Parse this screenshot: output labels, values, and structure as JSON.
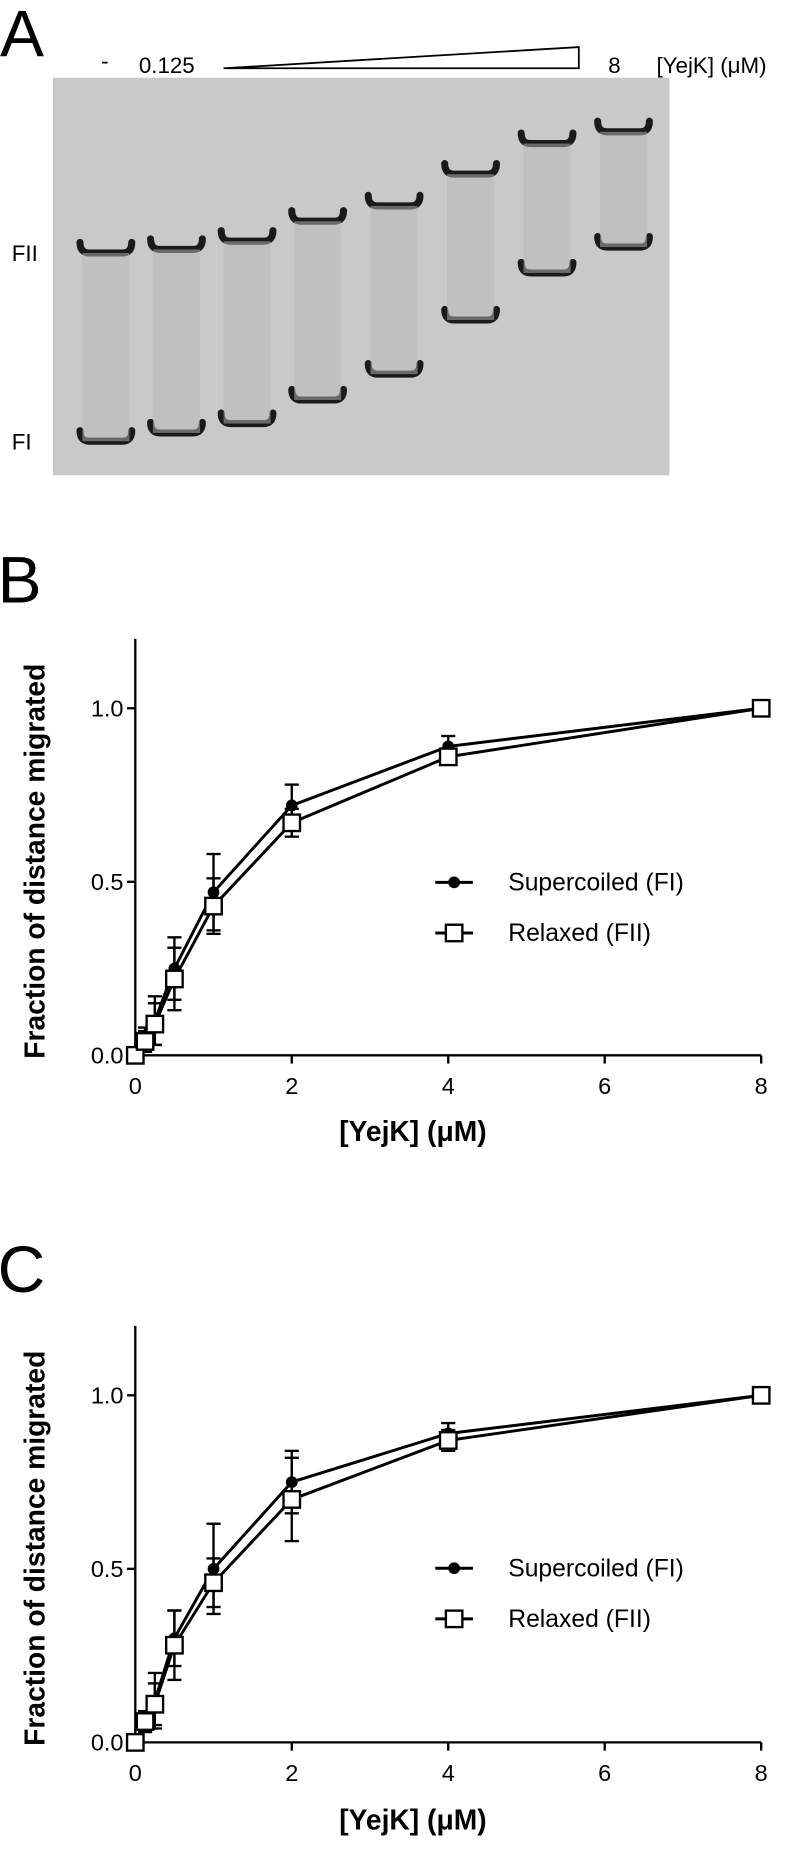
{
  "panel_labels": [
    "A",
    "B",
    "C"
  ],
  "gel": {
    "lane_labels": [
      "-",
      "0.125",
      "8"
    ],
    "concentration_label": "[YejK] (μM)",
    "band_labels": [
      "FII",
      "FI"
    ]
  },
  "chart_data": [
    {
      "type": "line",
      "xlabel": "[YejK] (μM)",
      "ylabel": "Fraction of distance migrated",
      "x": [
        0,
        0.125,
        0.25,
        0.5,
        1,
        2,
        4,
        8
      ],
      "xlim": [
        0,
        8
      ],
      "xticks": [
        0,
        2,
        4,
        6,
        8
      ],
      "ylim": [
        0,
        1.2
      ],
      "yticks": [
        {
          "value": 0,
          "label": "0.0"
        },
        {
          "value": 0.5,
          "label": "0.5"
        },
        {
          "value": 1,
          "label": "1.0"
        }
      ],
      "legend": "right",
      "series": [
        {
          "name": "Supercoiled (FI)",
          "color": "#000000",
          "marker": "circle",
          "values": [
            0,
            0.05,
            0.1,
            0.25,
            0.47,
            0.72,
            0.89,
            1.0
          ],
          "errors": [
            0.01,
            0.03,
            0.07,
            0.09,
            0.11,
            0.06,
            0.03,
            0.01
          ]
        },
        {
          "name": "Relaxed (FII)",
          "color": "#000000",
          "marker": "square",
          "values": [
            0,
            0.04,
            0.09,
            0.22,
            0.43,
            0.67,
            0.86,
            1.0
          ],
          "errors": [
            0.01,
            0.03,
            0.06,
            0.09,
            0.08,
            0.04,
            0.01,
            0.01
          ]
        }
      ]
    },
    {
      "type": "line",
      "xlabel": "[YejK] (μM)",
      "ylabel": "Fraction of distance migrated",
      "x": [
        0,
        0.125,
        0.25,
        0.5,
        1,
        2,
        4,
        8
      ],
      "xlim": [
        0,
        8
      ],
      "xticks": [
        0,
        2,
        4,
        6,
        8
      ],
      "ylim": [
        0,
        1.2
      ],
      "yticks": [
        {
          "value": 0,
          "label": "0.0"
        },
        {
          "value": 0.5,
          "label": "0.5"
        },
        {
          "value": 1,
          "label": "1.0"
        }
      ],
      "legend": "right",
      "series": [
        {
          "name": "Supercoiled (FI)",
          "color": "#000000",
          "marker": "circle",
          "values": [
            0,
            0.06,
            0.12,
            0.3,
            0.5,
            0.75,
            0.89,
            1.0
          ],
          "errors": [
            0.01,
            0.03,
            0.08,
            0.08,
            0.13,
            0.09,
            0.03,
            0.01
          ]
        },
        {
          "name": "Relaxed (FII)",
          "color": "#000000",
          "marker": "square",
          "values": [
            0,
            0.06,
            0.11,
            0.28,
            0.46,
            0.7,
            0.87,
            1.0
          ],
          "errors": [
            0.01,
            0.03,
            0.06,
            0.1,
            0.07,
            0.12,
            0.03,
            0.01
          ]
        }
      ]
    }
  ]
}
